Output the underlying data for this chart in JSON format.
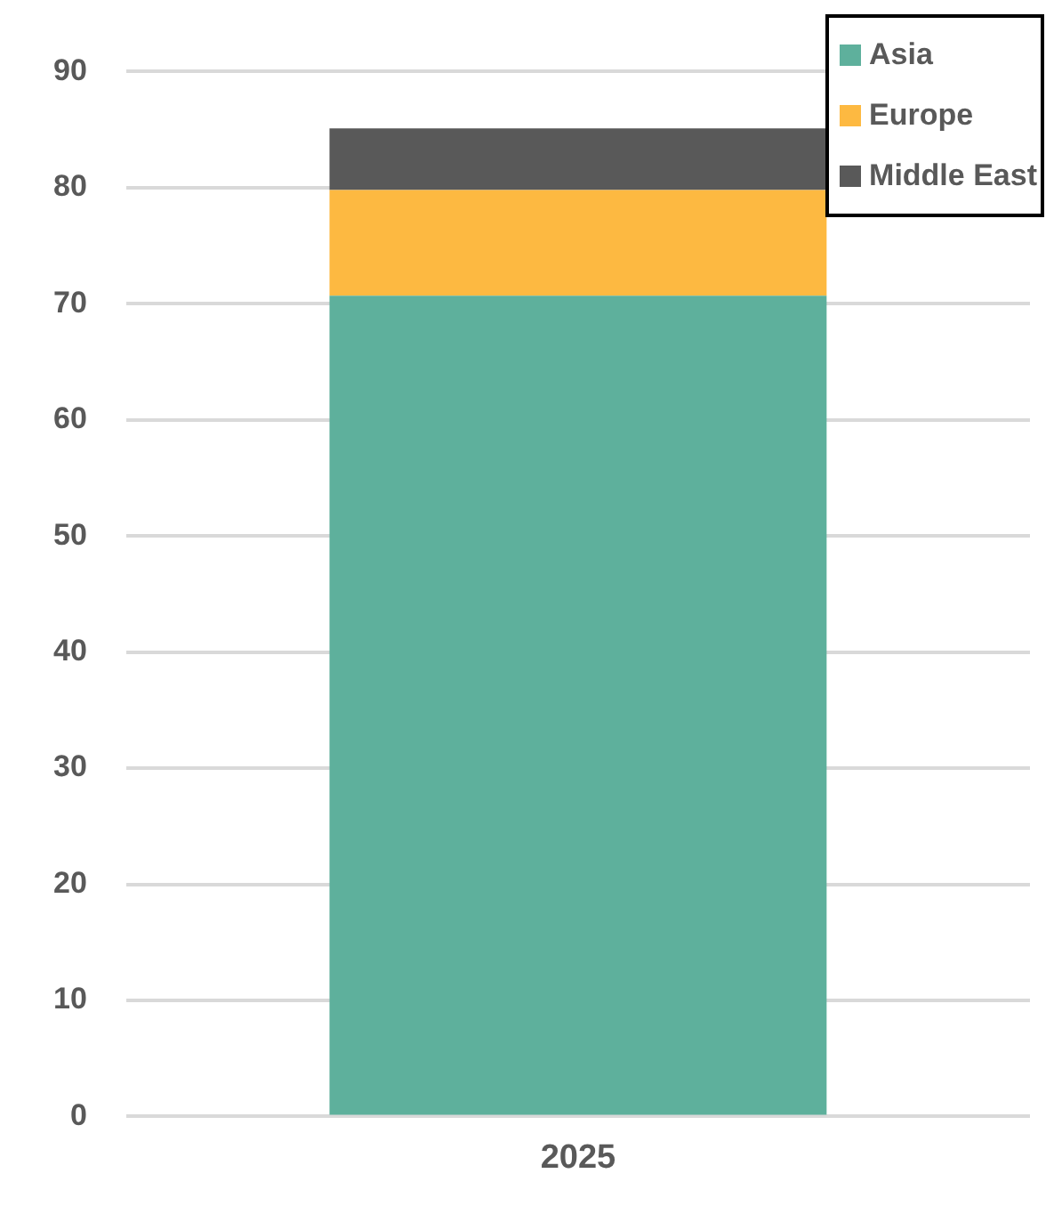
{
  "chart_data": {
    "type": "bar",
    "stacked": true,
    "categories": [
      "2025"
    ],
    "series": [
      {
        "name": "Asia",
        "color": "#5eb09c",
        "values": [
          70.7
        ]
      },
      {
        "name": "Europe",
        "color": "#fdb941",
        "values": [
          9.1
        ]
      },
      {
        "name": "Middle East",
        "color": "#595959",
        "values": [
          5.3
        ]
      }
    ],
    "ylim": [
      0,
      90
    ],
    "yticks": [
      0,
      10,
      20,
      30,
      40,
      50,
      60,
      70,
      80,
      90
    ],
    "grid": "y",
    "legend": "top right"
  }
}
